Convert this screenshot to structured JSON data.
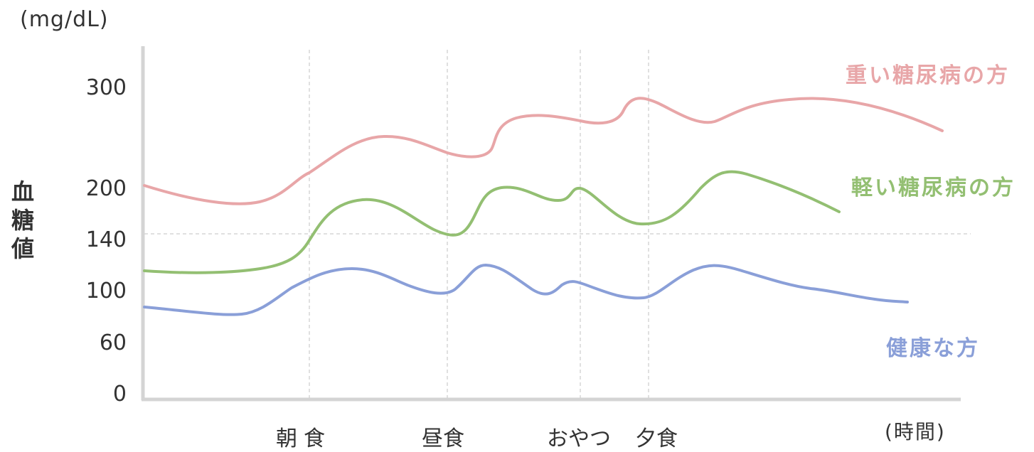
{
  "chart_data": {
    "type": "line",
    "ylabel": "血糖値",
    "yunit": "(mg/dL)",
    "xunit": "(時間)",
    "yticks": [
      "300",
      "200",
      "140",
      "100",
      "60",
      "0"
    ],
    "meal_labels": [
      {
        "label": "朝食"
      },
      {
        "label": "昼食"
      },
      {
        "label": "おやつ"
      },
      {
        "label": "夕食"
      }
    ],
    "reference_line": 140,
    "series": [
      {
        "name": "重い糖尿病の方",
        "color": "#e8a6a8"
      },
      {
        "name": "軽い糖尿病の方",
        "color": "#93bf72"
      },
      {
        "name": "健康な方",
        "color": "#8a9fd8"
      }
    ]
  }
}
